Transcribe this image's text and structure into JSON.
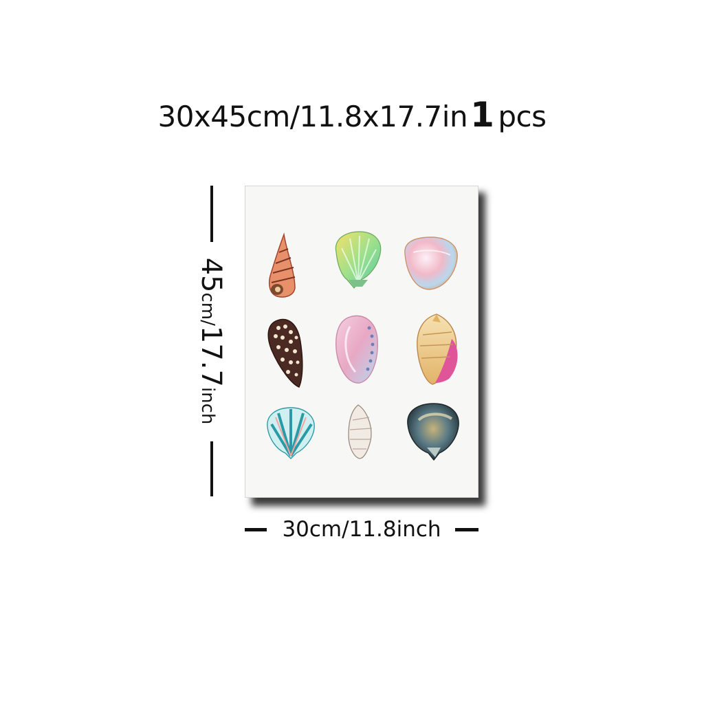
{
  "headline": {
    "size_text": "30x45cm/11.8x17.7in",
    "quantity": "1",
    "unit": "pcs"
  },
  "height_dimension": {
    "value": "45",
    "unit": "cm/",
    "inch_value": "17.7",
    "inch_unit": "inch"
  },
  "width_dimension": {
    "label": "30cm/11.8inch"
  },
  "poster": {
    "subject": "watercolor seashells",
    "shells": [
      "auger-shell-icon",
      "green-scallop-shell-icon",
      "pearl-clam-shell-icon",
      "cone-shell-icon",
      "abalone-shell-icon",
      "conch-shell-icon",
      "teal-scallop-shell-icon",
      "whelk-shell-icon",
      "dark-scallop-shell-icon"
    ]
  },
  "colors": {
    "text": "#111111",
    "poster_background": "#f7f7f6",
    "shadow": "#3b3b3b"
  }
}
